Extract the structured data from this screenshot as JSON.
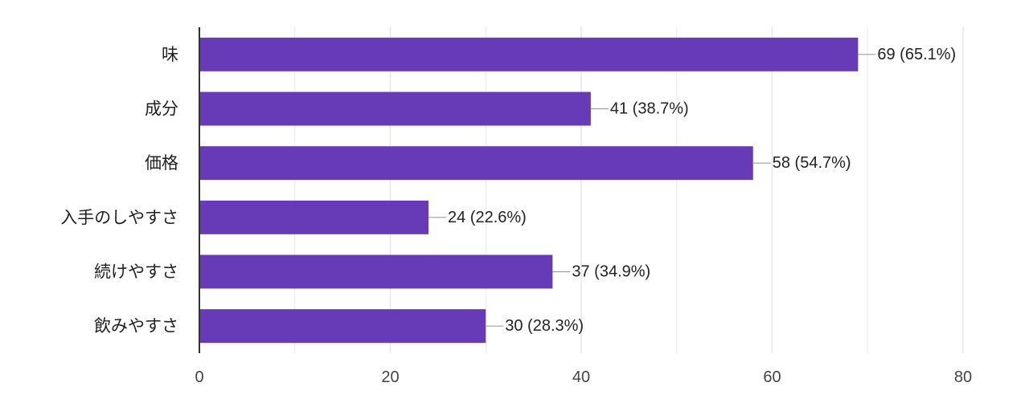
{
  "chart_data": {
    "type": "bar",
    "orientation": "horizontal",
    "categories": [
      "味",
      "成分",
      "価格",
      "入手のしやすさ",
      "続けやすさ",
      "飲みやすさ"
    ],
    "values": [
      69,
      41,
      58,
      24,
      37,
      30
    ],
    "value_labels": [
      "69 (65.1%)",
      "41 (38.7%)",
      "58 (54.7%)",
      "24 (22.6%)",
      "37 (34.9%)",
      "30 (28.3%)"
    ],
    "xlim": [
      0,
      80
    ],
    "xticks": [
      0,
      20,
      40,
      60,
      80
    ],
    "grid": true,
    "legend": "none",
    "bar_color": "#673ab7"
  }
}
